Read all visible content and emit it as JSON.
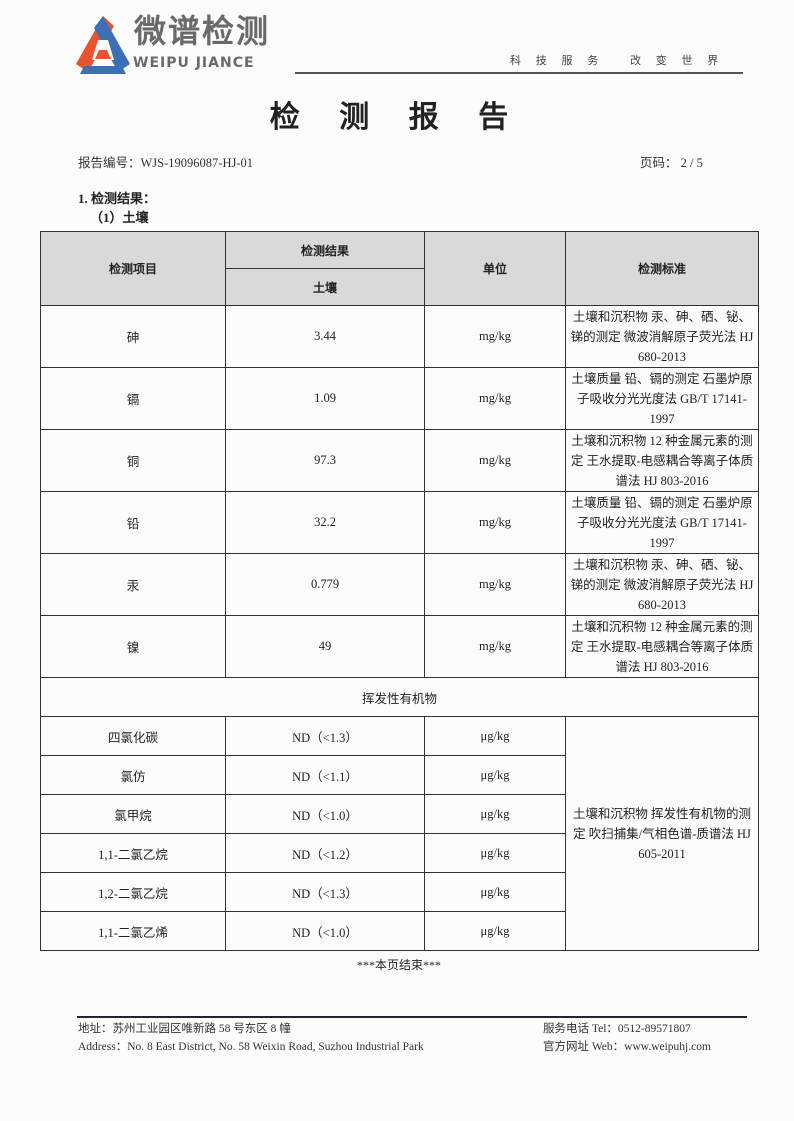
{
  "header": {
    "logo_cn": "微谱检测",
    "logo_en": "WEIPU JIANCE",
    "slogan": "科 技 服 务　 改 变 世 界",
    "brand_colors": [
      "#e8542e",
      "#3d6fb5"
    ]
  },
  "title": "检 测 报 告",
  "report_no": "报告编号：WJS-19096087-HJ-01",
  "page_no": "页码：  2 / 5",
  "section": "1.  检测结果：",
  "subsection": "（1）土壤",
  "table": {
    "headers": {
      "item": "检测项目",
      "result": "检测结果",
      "sample": "土壤",
      "unit": "单位",
      "standard": "检测标准"
    },
    "metals": [
      {
        "item": "砷",
        "value": "3.44",
        "unit": "mg/kg",
        "standard": "土壤和沉积物 汞、砷、硒、铋、锑的测定 微波消解原子荧光法 HJ 680-2013"
      },
      {
        "item": "镉",
        "value": "1.09",
        "unit": "mg/kg",
        "standard": "土壤质量 铅、镉的测定 石墨炉原子吸收分光光度法 GB/T 17141-1997"
      },
      {
        "item": "铜",
        "value": "97.3",
        "unit": "mg/kg",
        "standard": "土壤和沉积物 12 种金属元素的测定 王水提取-电感耦合等离子体质谱法 HJ 803-2016"
      },
      {
        "item": "铅",
        "value": "32.2",
        "unit": "mg/kg",
        "standard": "土壤质量 铅、镉的测定 石墨炉原子吸收分光光度法 GB/T 17141-1997"
      },
      {
        "item": "汞",
        "value": "0.779",
        "unit": "mg/kg",
        "standard": "土壤和沉积物 汞、砷、硒、铋、锑的测定 微波消解原子荧光法 HJ 680-2013"
      },
      {
        "item": "镍",
        "value": "49",
        "unit": "mg/kg",
        "standard": "土壤和沉积物 12 种金属元素的测定 王水提取-电感耦合等离子体质谱法 HJ 803-2016"
      }
    ],
    "voc_section": "挥发性有机物",
    "voc_standard": "土壤和沉积物 挥发性有机物的测定 吹扫捕集/气相色谱-质谱法 HJ 605-2011",
    "vocs": [
      {
        "item": "四氯化碳",
        "value": "ND（<1.3）",
        "unit": "μg/kg"
      },
      {
        "item": "氯仿",
        "value": "ND（<1.1）",
        "unit": "μg/kg"
      },
      {
        "item": "氯甲烷",
        "value": "ND（<1.0）",
        "unit": "μg/kg"
      },
      {
        "item": "1,1-二氯乙烷",
        "value": "ND（<1.2）",
        "unit": "μg/kg"
      },
      {
        "item": "1,2-二氯乙烷",
        "value": "ND（<1.3）",
        "unit": "μg/kg"
      },
      {
        "item": "1,1-二氯乙烯",
        "value": "ND（<1.0）",
        "unit": "μg/kg"
      }
    ]
  },
  "end_note": "***本页结束***",
  "footer": {
    "address_cn": "地址：苏州工业园区唯新路 58 号东区 8 幢",
    "address_en": "Address：No. 8 East District, No. 58 Weixin Road, Suzhou Industrial Park",
    "tel": "服务电话  Tel：0512-89571807",
    "web": "官方网址  Web：www.weipuhj.com"
  }
}
